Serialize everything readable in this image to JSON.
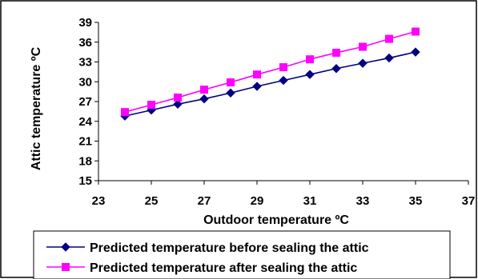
{
  "chart_data": {
    "type": "line",
    "title": "",
    "xlabel": "Outdoor  temperature  ºC",
    "ylabel": "Attic temperature  ºC",
    "xlim": [
      23,
      37
    ],
    "ylim": [
      15,
      39
    ],
    "x_ticks": [
      "23",
      "25",
      "27",
      "29",
      "31",
      "33",
      "35",
      "37"
    ],
    "y_ticks": [
      "15",
      "18",
      "21",
      "24",
      "27",
      "30",
      "33",
      "36",
      "39"
    ],
    "grid": false,
    "legend_position": "bottom",
    "x": [
      24,
      25,
      26,
      27,
      28,
      29,
      30,
      31,
      32,
      33,
      34,
      35
    ],
    "series": [
      {
        "name": "Predicted temperature  before  sealing the  attic",
        "color": "#000080",
        "marker": "diamond",
        "values": [
          24.8,
          25.7,
          26.6,
          27.4,
          28.3,
          29.3,
          30.2,
          31.1,
          32.0,
          32.8,
          33.6,
          34.5
        ]
      },
      {
        "name": "Predicted temperature  after  sealing  the  attic",
        "color": "#FF00FF",
        "marker": "square",
        "values": [
          25.4,
          26.5,
          27.6,
          28.8,
          29.9,
          31.1,
          32.2,
          33.4,
          34.4,
          35.3,
          36.5,
          37.6
        ]
      }
    ]
  }
}
